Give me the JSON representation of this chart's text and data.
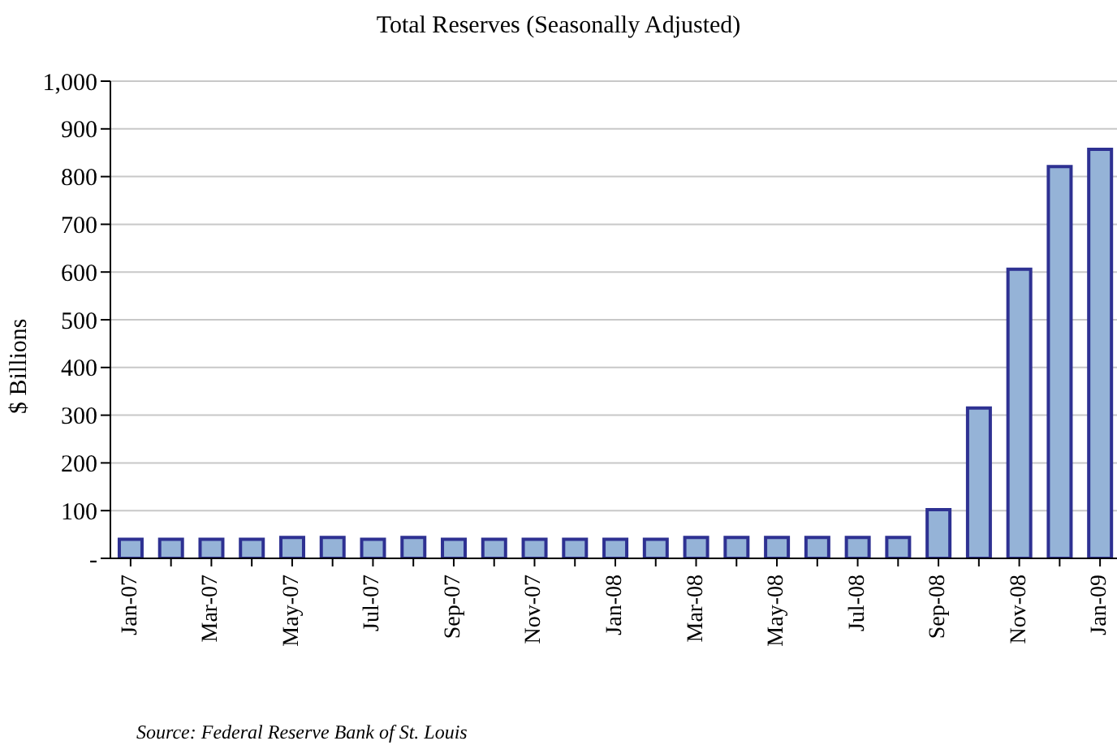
{
  "chart_data": {
    "type": "bar",
    "title": "Total Reserves (Seasonally Adjusted)",
    "ylabel": "$ Billions",
    "categories": [
      "Jan-07",
      null,
      "Mar-07",
      null,
      "May-07",
      null,
      "Jul-07",
      null,
      "Sep-07",
      null,
      "Nov-07",
      null,
      "Jan-08",
      null,
      "Mar-08",
      null,
      "May-08",
      null,
      "Jul-08",
      null,
      "Sep-08",
      null,
      "Nov-08",
      null,
      "Jan-09"
    ],
    "values": [
      40,
      40,
      40,
      40,
      44,
      44,
      40,
      44,
      40,
      40,
      40,
      40,
      40,
      40,
      44,
      44,
      44,
      44,
      44,
      44,
      102,
      315,
      606,
      821,
      857
    ],
    "color": "#95b3d7",
    "ylim": [
      0,
      1000
    ],
    "yticks": [
      {
        "value": 0,
        "label": "-"
      },
      100,
      200,
      300,
      400,
      500,
      600,
      700,
      800,
      900,
      {
        "value": 1000,
        "label": "1,000"
      }
    ],
    "grid": "y",
    "annotations": [
      "Source: Federal Reserve Bank of St. Louis"
    ]
  }
}
